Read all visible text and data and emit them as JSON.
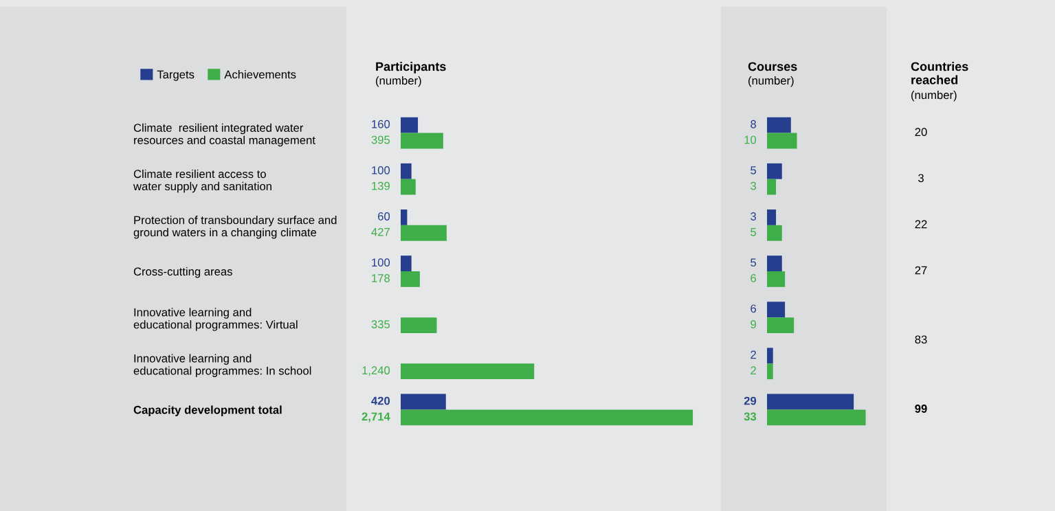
{
  "chart_data": [
    {
      "type": "bar",
      "orientation": "horizontal",
      "title": "Participants",
      "subtitle": "(number)",
      "categories": [
        "Climate  resilient integrated water\nresources and coastal management",
        "Climate resilient access to\nwater supply and sanitation",
        "Protection of transboundary surface and\nground waters in a changing climate",
        "Cross-cutting areas",
        "Innovative learning and\neducational programmes: Virtual",
        "Innovative learning and\neducational programmes: In school",
        "Capacity development total"
      ],
      "series": [
        {
          "name": "Targets",
          "color": "#253f8e",
          "values": [
            160,
            100,
            60,
            100,
            null,
            null,
            420
          ],
          "value_labels": [
            "160",
            "100",
            "60",
            "100",
            null,
            null,
            "420"
          ]
        },
        {
          "name": "Achievements",
          "color": "#3fae49",
          "values": [
            395,
            139,
            427,
            178,
            335,
            1240,
            2714
          ],
          "value_labels": [
            "395",
            "139",
            "427",
            "178",
            "335",
            "1,240",
            "2,714"
          ]
        }
      ],
      "legend": "top left",
      "tick_labels": "y",
      "xlim": [
        0,
        2950
      ]
    },
    {
      "type": "bar",
      "orientation": "horizontal",
      "title": "Courses",
      "subtitle": "(number)",
      "series": [
        {
          "color": "#253f8e",
          "values": [
            8,
            5,
            3,
            5,
            6,
            2,
            29
          ]
        },
        {
          "color": "#3fae49",
          "values": [
            10,
            3,
            5,
            6,
            9,
            2,
            33
          ]
        }
      ],
      "data_labels": true,
      "tick_labels": false,
      "xlim": [
        0,
        40
      ]
    },
    {
      "type": "other",
      "title": "Countries\nreached",
      "subtitle": "(number)",
      "annotations": [
        "20",
        "3",
        "22",
        "27",
        "83",
        "99"
      ]
    }
  ]
}
